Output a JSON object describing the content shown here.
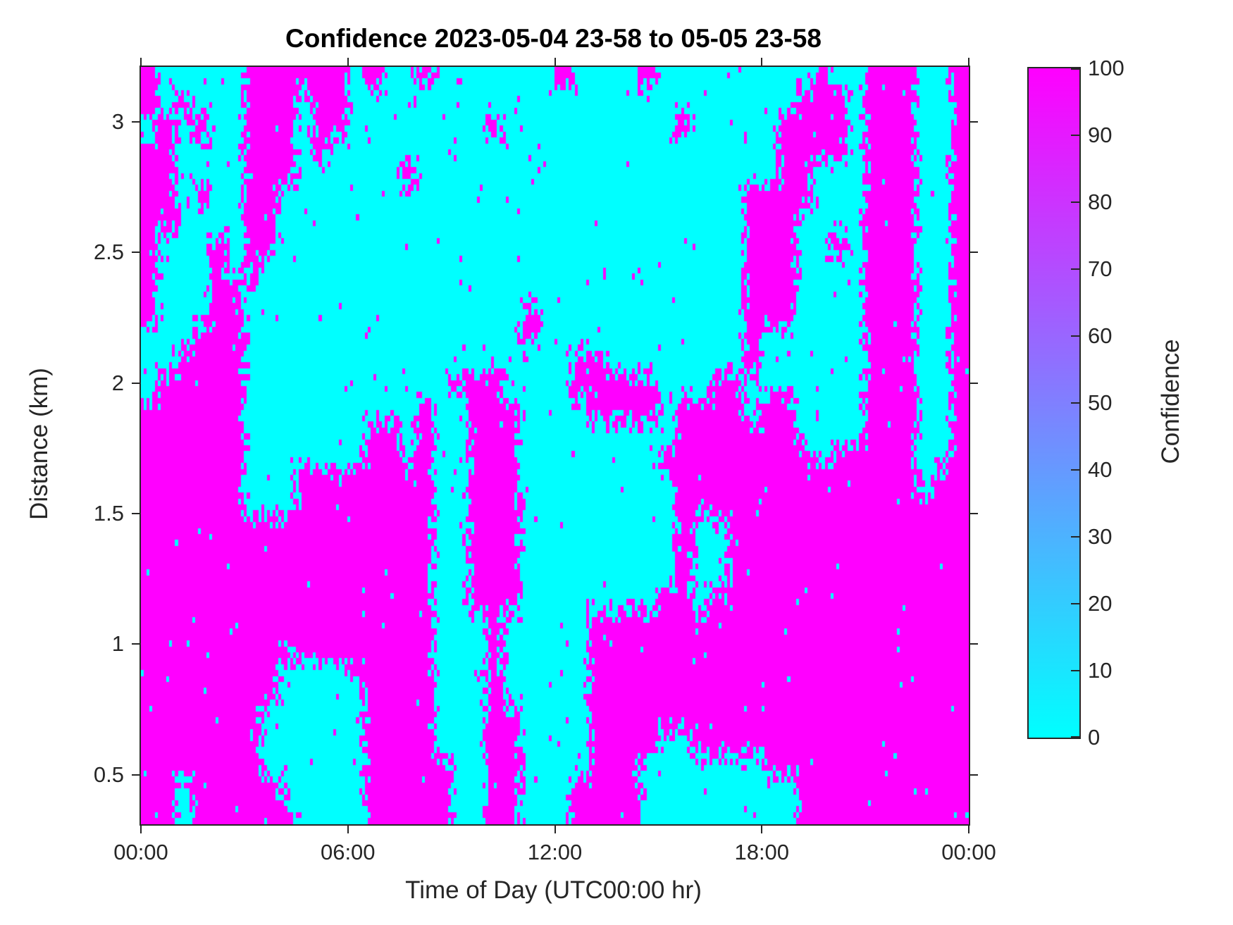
{
  "title": "Confidence 2023-05-04 23-58 to 05-05 23-58",
  "axes": {
    "xlabel": "Time of Day (UTC00:00 hr)",
    "ylabel": "Distance (km)",
    "x_ticks": [
      {
        "hour": 0,
        "label": "00:00"
      },
      {
        "hour": 6,
        "label": "06:00"
      },
      {
        "hour": 12,
        "label": "12:00"
      },
      {
        "hour": 18,
        "label": "18:00"
      },
      {
        "hour": 24,
        "label": "00:00"
      }
    ],
    "y_ticks": [
      {
        "km": 0.5,
        "label": "0.5"
      },
      {
        "km": 1,
        "label": "1"
      },
      {
        "km": 1.5,
        "label": "1.5"
      },
      {
        "km": 2,
        "label": "2"
      },
      {
        "km": 2.5,
        "label": "2.5"
      },
      {
        "km": 3,
        "label": "3"
      }
    ]
  },
  "colorbar": {
    "label": "Confidence",
    "ticks": [
      0,
      10,
      20,
      30,
      40,
      50,
      60,
      70,
      80,
      90,
      100
    ],
    "min": 0,
    "max": 100,
    "min_color": "#00FFFF",
    "max_color": "#FF00FF"
  },
  "chart_data": {
    "type": "heatmap",
    "title": "Confidence 2023-05-04 23-58 to 05-05 23-58",
    "xlabel": "Time of Day (UTC00:00 hr)",
    "ylabel": "Distance (km)",
    "x_range_hours": [
      0,
      24
    ],
    "y_range_km": [
      0.31,
      3.21
    ],
    "value_range": [
      0,
      100
    ],
    "colormap": "cool",
    "colors": {
      "low": "#00FFFF",
      "high": "#FF00FF"
    },
    "values_meaning": "binary field: 1 = confidence 100 (magenta), 0 = confidence 0 (cyan)",
    "grid_note": "rows top-to-bottom = 3.2 km down to 0.3 km (32 rows); cols left-to-right = 00:00 to 24:00 UTC in 30-min steps (48 cols)",
    "grid_rows_top_to_bottom": [
      "100000111111010010000000100001000000000100111001",
      "101000111011000000000000000000000000001110111001",
      "010100111011000000001000000000010000011110111001",
      "110000111010000000000000000000000000011110111001",
      "110000111000000100000000000000000000011000111001",
      "110100110000000000000000000000000001111000111001",
      "110000110000000000000000000000000001110000111001",
      "100010110000000000000000000000000001110010111001",
      "100010100000000000000000000000000001110000111001",
      "100011000000000000000000000000000001110000111001",
      "100011000000000000000010000000000001110000111001",
      "000111000000000000000010000000000001000000111001",
      "001111000000000000000000011000000001000000111001",
      "011111000000000000111000011111000110000000111001",
      "111111000000000010011100001111011110110000111001",
      "111111000000011010011100000000011111110000111001",
      "111111000000011010011100000000111111111011111001",
      "111111000111111110011100000000011111111111111011",
      "111111000111111110011100000000011111111111111111",
      "111111111111111110011100000000010011111111111111",
      "111111111111111110011100000000010011111111111111",
      "111111111111111110011100000000010011111111111111",
      "111111111111111110011100000000110111111111111111",
      "111111111111111110001000001111111111111111111111",
      "111111111111111110001000001111111111111111111111",
      "111111110000111110001000001111111111111111111111",
      "111111110000011110001000001111111111111111111111",
      "111111100000011110001100001111111111111111111111",
      "111111100000011110001100001111001111111111111111",
      "111111100000011111001100001110000000111111111111",
      "110111110000011111001100011110000000001111111111",
      "110111111000011111001100011110000000001111111111"
    ]
  }
}
